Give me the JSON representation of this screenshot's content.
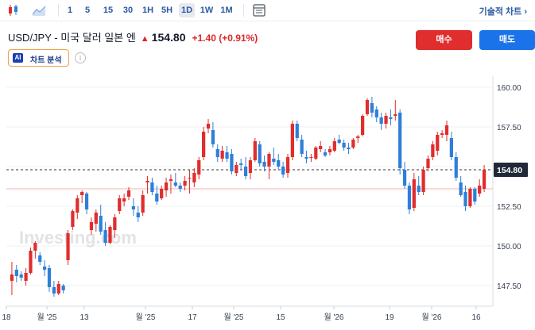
{
  "toolbar": {
    "intervals": [
      "1",
      "5",
      "15",
      "30",
      "1H",
      "5H",
      "1D",
      "1W",
      "1M"
    ],
    "active_interval": "1D",
    "tech_chart_label": "기술적 차트 ›"
  },
  "header": {
    "title": "USD/JPY - 미국 달러 일본 엔",
    "price": "154.80",
    "change": "+1.40 (+0.91%)",
    "buy_label": "매수",
    "sell_label": "매도",
    "ai_label": "차트 분석",
    "ai_badge": "AI",
    "info_symbol": "i"
  },
  "colors": {
    "up": "#e02d2d",
    "down": "#2e7fd8",
    "accent": "#1a73e8"
  },
  "watermark": "Investing.com",
  "chart_data": {
    "type": "candlestick",
    "y_ticks": [
      "160.00",
      "157.50",
      "155.00",
      "152.50",
      "150.00",
      "147.50"
    ],
    "current_price_label": "154.80",
    "current_price": 154.8,
    "reference_price": 153.6,
    "ylim": [
      146.2,
      160.7
    ],
    "x_tick_labels": [
      "18",
      "월 '25",
      "13",
      "월 '25",
      "17",
      "월 '25",
      "15",
      "월 '26",
      "19",
      "월 '26",
      "16"
    ],
    "candles": [
      [
        147.8,
        149.0,
        146.9,
        148.2
      ],
      [
        148.5,
        148.8,
        147.7,
        148.1
      ],
      [
        148.2,
        148.4,
        147.8,
        148.0
      ],
      [
        147.8,
        148.6,
        147.5,
        148.3
      ],
      [
        148.3,
        149.9,
        148.2,
        149.7
      ],
      [
        149.7,
        150.3,
        149.2,
        150.2
      ],
      [
        149.4,
        149.6,
        148.8,
        149.0
      ],
      [
        148.7,
        149.1,
        148.1,
        148.5
      ],
      [
        148.6,
        148.8,
        147.1,
        147.4
      ],
      [
        147.4,
        147.8,
        146.8,
        147.0
      ],
      [
        147.0,
        147.8,
        146.9,
        147.6
      ],
      [
        147.5,
        147.6,
        147.0,
        147.2
      ],
      [
        149.1,
        151.0,
        148.8,
        150.8
      ],
      [
        151.2,
        152.3,
        151.0,
        152.2
      ],
      [
        152.1,
        153.2,
        151.7,
        153.0
      ],
      [
        153.2,
        153.5,
        152.7,
        153.4
      ],
      [
        153.3,
        153.4,
        152.0,
        152.3
      ],
      [
        151.0,
        151.8,
        150.7,
        151.5
      ],
      [
        151.4,
        152.3,
        150.9,
        152.1
      ],
      [
        151.9,
        152.6,
        150.7,
        150.9
      ],
      [
        151.0,
        151.5,
        150.0,
        150.2
      ],
      [
        150.2,
        151.3,
        150.1,
        151.2
      ],
      [
        151.0,
        152.0,
        150.5,
        151.8
      ],
      [
        152.2,
        153.2,
        152.0,
        153.0
      ],
      [
        152.8,
        153.3,
        152.5,
        153.0
      ],
      [
        153.1,
        153.7,
        152.9,
        153.5
      ],
      [
        152.5,
        153.0,
        151.9,
        152.3
      ],
      [
        152.1,
        152.5,
        151.5,
        151.8
      ],
      [
        152.1,
        153.5,
        151.9,
        153.2
      ],
      [
        154.0,
        154.4,
        153.3,
        154.1
      ],
      [
        154.0,
        154.3,
        153.2,
        153.4
      ],
      [
        153.3,
        153.8,
        152.6,
        152.8
      ],
      [
        153.0,
        153.8,
        152.9,
        153.6
      ],
      [
        153.5,
        154.3,
        153.1,
        154.0
      ],
      [
        154.1,
        154.5,
        153.3,
        154.2
      ],
      [
        154.0,
        154.6,
        153.7,
        153.8
      ],
      [
        153.8,
        154.0,
        153.4,
        153.6
      ],
      [
        153.8,
        154.4,
        153.5,
        154.1
      ],
      [
        154.3,
        154.8,
        153.3,
        154.3
      ],
      [
        154.0,
        154.9,
        153.7,
        154.6
      ],
      [
        154.5,
        155.6,
        154.2,
        155.4
      ],
      [
        155.6,
        157.5,
        155.4,
        157.2
      ],
      [
        157.4,
        158.0,
        157.1,
        157.7
      ],
      [
        157.3,
        157.8,
        156.2,
        156.4
      ],
      [
        156.1,
        156.4,
        155.3,
        155.6
      ],
      [
        155.5,
        156.3,
        155.3,
        156.0
      ],
      [
        155.9,
        156.3,
        155.3,
        155.5
      ],
      [
        155.8,
        156.1,
        154.5,
        154.7
      ],
      [
        154.6,
        155.3,
        154.4,
        155.1
      ],
      [
        155.2,
        155.5,
        154.8,
        155.1
      ],
      [
        155.0,
        155.6,
        154.2,
        154.4
      ],
      [
        154.6,
        155.6,
        154.2,
        155.4
      ],
      [
        155.4,
        156.8,
        155.3,
        156.6
      ],
      [
        156.4,
        156.6,
        155.0,
        155.2
      ],
      [
        155.3,
        155.7,
        154.7,
        155.0
      ],
      [
        155.0,
        155.9,
        154.2,
        155.8
      ],
      [
        155.5,
        156.2,
        155.1,
        155.3
      ],
      [
        155.4,
        155.8,
        154.8,
        155.0
      ],
      [
        155.0,
        155.3,
        154.3,
        154.5
      ],
      [
        154.6,
        155.8,
        154.3,
        155.6
      ],
      [
        155.6,
        157.9,
        155.4,
        157.7
      ],
      [
        157.7,
        157.9,
        156.6,
        156.8
      ],
      [
        156.7,
        157.0,
        155.6,
        155.8
      ],
      [
        155.6,
        156.0,
        155.2,
        155.5
      ],
      [
        155.6,
        155.8,
        155.3,
        155.6
      ],
      [
        155.5,
        156.3,
        155.4,
        156.2
      ],
      [
        156.1,
        156.6,
        155.9,
        156.3
      ],
      [
        155.9,
        156.1,
        155.6,
        155.7
      ],
      [
        155.9,
        156.3,
        155.7,
        156.1
      ],
      [
        156.0,
        156.8,
        155.9,
        156.6
      ],
      [
        156.7,
        157.0,
        156.4,
        156.5
      ],
      [
        156.5,
        156.7,
        156.0,
        156.2
      ],
      [
        156.2,
        156.5,
        155.8,
        156.1
      ],
      [
        156.2,
        156.8,
        156.1,
        156.7
      ],
      [
        156.8,
        157.0,
        156.5,
        156.9
      ],
      [
        157.0,
        158.3,
        156.9,
        158.2
      ],
      [
        158.3,
        159.3,
        158.2,
        159.2
      ],
      [
        159.0,
        159.4,
        158.1,
        158.4
      ],
      [
        158.6,
        158.8,
        157.8,
        158.1
      ],
      [
        158.1,
        158.4,
        157.3,
        157.7
      ],
      [
        157.7,
        158.4,
        157.4,
        158.2
      ],
      [
        158.1,
        158.6,
        157.6,
        158.0
      ],
      [
        158.2,
        159.2,
        157.9,
        158.3
      ],
      [
        158.4,
        158.6,
        154.5,
        154.9
      ],
      [
        154.8,
        155.3,
        153.6,
        153.8
      ],
      [
        153.8,
        154.0,
        152.0,
        152.3
      ],
      [
        152.4,
        154.6,
        152.2,
        154.2
      ],
      [
        153.8,
        154.4,
        153.2,
        153.4
      ],
      [
        153.4,
        155.0,
        153.2,
        154.8
      ],
      [
        154.9,
        155.7,
        154.7,
        155.5
      ],
      [
        155.6,
        156.6,
        155.4,
        156.4
      ],
      [
        156.0,
        157.2,
        155.7,
        157.0
      ],
      [
        157.0,
        157.3,
        156.8,
        157.1
      ],
      [
        157.0,
        157.9,
        156.6,
        157.6
      ],
      [
        156.8,
        157.2,
        155.4,
        155.6
      ],
      [
        155.6,
        155.9,
        154.1,
        154.3
      ],
      [
        154.0,
        154.4,
        153.1,
        153.2
      ],
      [
        153.4,
        153.8,
        152.2,
        152.5
      ],
      [
        152.5,
        153.7,
        152.4,
        153.6
      ],
      [
        153.6,
        153.7,
        152.6,
        152.8
      ],
      [
        153.3,
        154.2,
        153.1,
        153.8
      ],
      [
        153.6,
        155.1,
        153.4,
        154.8
      ]
    ]
  }
}
